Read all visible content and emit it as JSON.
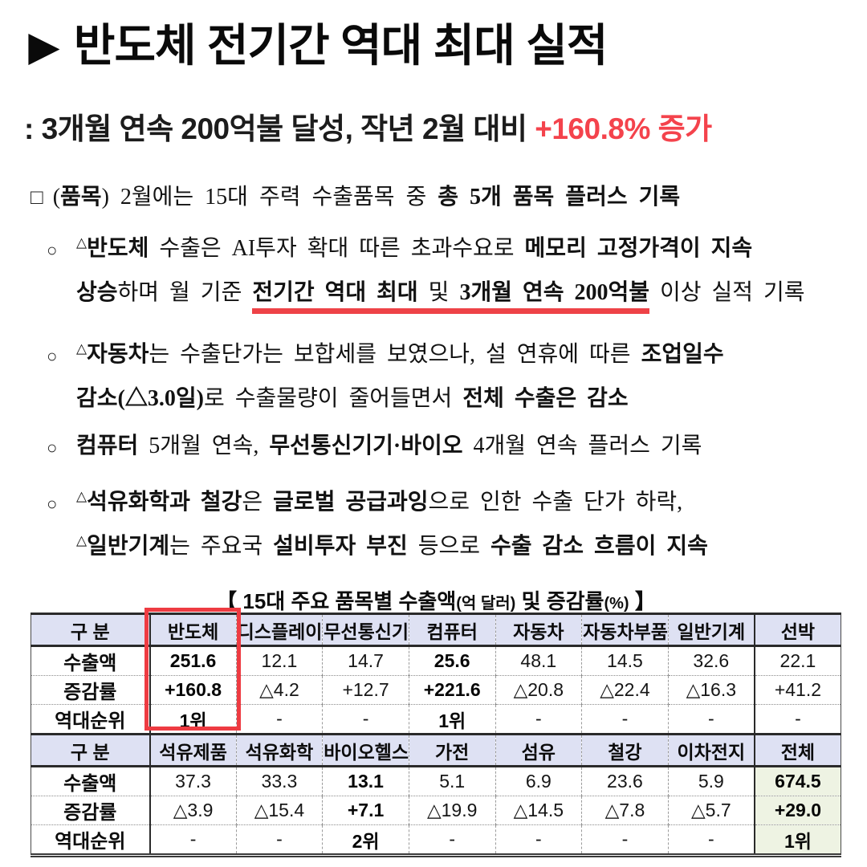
{
  "title": {
    "arrow": "▶",
    "text": "반도체 전기간 역대 최대 실적"
  },
  "subtitle": [
    {
      "t": ": 3개월 연속 200억불 달성, 작년 2월 대비 "
    },
    {
      "t": "+160.8% 증가",
      "red": 1
    }
  ],
  "body": {
    "para1_marker": "□",
    "para1": [
      {
        "t": "("
      },
      {
        "t": "품목",
        "b": 1
      },
      {
        "t": ") 2월에는 15대 주력 수출품목 중 "
      },
      {
        "t": "총 5개 품목 플러스 기록",
        "b": 1
      }
    ],
    "bullet_marker": "○",
    "bullets": [
      {
        "lines": [
          [
            {
              "t": "△",
              "sup": 1
            },
            {
              "t": "반도체",
              "b": 1
            },
            {
              "t": " 수출은 AI투자 확대 따른 초과수요로 "
            },
            {
              "t": "메모리 고정가격이 지속",
              "b": 1
            }
          ],
          [
            {
              "t": "상승",
              "b": 1
            },
            {
              "t": "하며 월 기준 "
            },
            {
              "t": "전기간 역대 최대",
              "b": 1,
              "u": 1
            },
            {
              "t": " 및 ",
              "u": 1
            },
            {
              "t": "3개월 연속 200억불",
              "b": 1,
              "u": 1
            },
            {
              "t": " 이상 실적 기록"
            }
          ]
        ]
      },
      {
        "lines": [
          [
            {
              "t": "△",
              "sup": 1
            },
            {
              "t": "자동차",
              "b": 1
            },
            {
              "t": "는 수출단가는 보합세를 보였으나, 설 연휴에 따른 "
            },
            {
              "t": "조업일수",
              "b": 1
            }
          ],
          [
            {
              "t": "감소(△3.0일)",
              "b": 1
            },
            {
              "t": "로 수출물량이 줄어들면서 "
            },
            {
              "t": "전체 수출은 감소",
              "b": 1
            }
          ]
        ]
      },
      {
        "lines": [
          [
            {
              "t": "컴퓨터",
              "b": 1
            },
            {
              "t": " 5개월 연속, "
            },
            {
              "t": "무선통신기기·바이오",
              "b": 1
            },
            {
              "t": " 4개월 연속 플러스 기록"
            }
          ]
        ]
      },
      {
        "lines": [
          [
            {
              "t": "△",
              "sup": 1
            },
            {
              "t": "석유화학과 철강",
              "b": 1
            },
            {
              "t": "은 "
            },
            {
              "t": "글로벌 공급과잉",
              "b": 1
            },
            {
              "t": "으로 인한 수출 단가 하락,"
            }
          ],
          [
            {
              "t": "△",
              "sup": 1
            },
            {
              "t": "일반기계",
              "b": 1
            },
            {
              "t": "는 주요국 "
            },
            {
              "t": "설비투자 부진",
              "b": 1
            },
            {
              "t": " 등으로 "
            },
            {
              "t": "수출 감소 흐름이 지속",
              "b": 1
            }
          ]
        ]
      }
    ]
  },
  "table": {
    "caption": [
      {
        "t": "【 15대 주요 품목별 수출액"
      },
      {
        "t": "(억 달러)",
        "sm": 1
      },
      {
        "t": " 및 증감률",
        "b": 1
      },
      {
        "t": "(%)",
        "sm": 1
      },
      {
        "t": " 】"
      }
    ],
    "corner_label": "구 분",
    "row_labels": [
      "수출액",
      "증감률",
      "역대순위"
    ],
    "sections": [
      {
        "columns": [
          "반도체",
          "디스플레이",
          "무선통신기기",
          "컴퓨터",
          "자동차",
          "자동차부품",
          "일반기계",
          "선박"
        ],
        "rows": [
          [
            "251.6",
            "12.1",
            "14.7",
            "25.6",
            "48.1",
            "14.5",
            "32.6",
            "22.1"
          ],
          [
            "+160.8",
            "△4.2",
            "+12.7",
            "+221.6",
            "△20.8",
            "△22.4",
            "△16.3",
            "+41.2"
          ],
          [
            "1위",
            "-",
            "-",
            "1위",
            "-",
            "-",
            "-",
            "-"
          ]
        ],
        "bold_cols": [
          0,
          3
        ],
        "highlight_col": null
      },
      {
        "columns": [
          "석유제품",
          "석유화학",
          "바이오헬스",
          "가전",
          "섬유",
          "철강",
          "이차전지",
          "전체"
        ],
        "rows": [
          [
            "37.3",
            "33.3",
            "13.1",
            "5.1",
            "6.9",
            "23.6",
            "5.9",
            "674.5"
          ],
          [
            "△3.9",
            "△15.4",
            "+7.1",
            "△19.9",
            "△14.5",
            "△7.8",
            "△5.7",
            "+29.0"
          ],
          [
            "-",
            "-",
            "2위",
            "-",
            "-",
            "-",
            "-",
            "1위"
          ]
        ],
        "bold_cols": [
          2,
          7
        ],
        "highlight_col": 7
      }
    ],
    "colors": {
      "accent_red": "#ee3b42",
      "red_text": "#f4434c",
      "header_bg": "#dee1f3",
      "total_bg": "#eef3e3"
    }
  }
}
